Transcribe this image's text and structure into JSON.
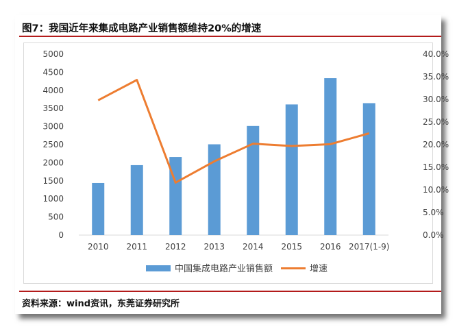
{
  "figure": {
    "title": "图7：我国近年来集成电路产业销售额维持20%的增速",
    "source": "资料来源：wind资讯，东莞证券研究所"
  },
  "colors": {
    "bar": "#5b9bd5",
    "line": "#ed7d31",
    "rule": "#b31b1b"
  },
  "chart_data": {
    "type": "bar",
    "categories": [
      "2010",
      "2011",
      "2012",
      "2013",
      "2014",
      "2015",
      "2016",
      "2017(1-9)"
    ],
    "series": [
      {
        "name": "中国集成电路产业销售额",
        "type": "bar",
        "axis": "left",
        "values": [
          1440,
          1933,
          2158,
          2509,
          3015,
          3610,
          4336,
          3646
        ]
      },
      {
        "name": "增速",
        "type": "line",
        "axis": "right",
        "values": [
          29.8,
          34.3,
          11.6,
          16.3,
          20.2,
          19.7,
          20.1,
          22.5
        ]
      }
    ],
    "y_left": {
      "min": 0,
      "max": 5000,
      "step": 500,
      "ticks": [
        "0",
        "500",
        "1000",
        "1500",
        "2000",
        "2500",
        "3000",
        "3500",
        "4000",
        "4500",
        "5000"
      ]
    },
    "y_right": {
      "min": 0,
      "max": 40,
      "step": 5,
      "ticks": [
        "0.0%",
        "5.0%",
        "10.0%",
        "15.0%",
        "20.0%",
        "25.0%",
        "30.0%",
        "35.0%",
        "40.0%"
      ]
    },
    "grid": false,
    "legend_position": "bottom"
  }
}
